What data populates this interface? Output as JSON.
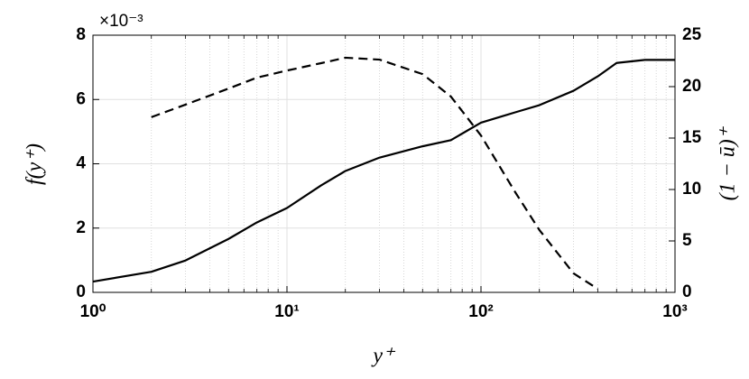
{
  "chart_data": {
    "type": "line",
    "x_label": "y⁺",
    "y_label": "f(y⁺)",
    "y2_label": "(1 − ū)⁺",
    "y_multiplier": "×10⁻³",
    "x": [
      1,
      2,
      3,
      5,
      7,
      10,
      15,
      20,
      30,
      50,
      70,
      100,
      150,
      200,
      300,
      400,
      500,
      700,
      1000
    ],
    "series": [
      {
        "color": "#000000",
        "dash": true,
        "values": [
          null,
          5.45,
          5.84,
          6.34,
          6.68,
          6.9,
          7.13,
          7.3,
          7.24,
          6.79,
          6.09,
          4.88,
          3.12,
          1.94,
          0.59,
          0.11,
          null,
          null,
          null
        ]
      },
      {
        "color": "#000000",
        "dash": false,
        "axis": "y2",
        "values": [
          1.05,
          2.0,
          3.1,
          5.2,
          6.8,
          8.2,
          10.4,
          11.8,
          13.1,
          14.2,
          14.8,
          16.5,
          17.5,
          18.2,
          19.6,
          21.0,
          22.3,
          22.6,
          22.6
        ]
      }
    ],
    "xlog": true,
    "xlim": [
      1,
      1000
    ],
    "xticks": [
      {
        "value": 1,
        "label": "10⁰"
      },
      {
        "value": 10,
        "label": "10¹"
      },
      {
        "value": 100,
        "label": "10²"
      },
      {
        "value": 1000,
        "label": "10³"
      }
    ],
    "ylim": [
      0,
      8
    ],
    "yticks": [
      0,
      2,
      4,
      6,
      8
    ],
    "y2lim": [
      0,
      25
    ],
    "y2ticks": [
      0,
      5,
      10,
      15,
      20,
      25
    ],
    "grid": true
  }
}
